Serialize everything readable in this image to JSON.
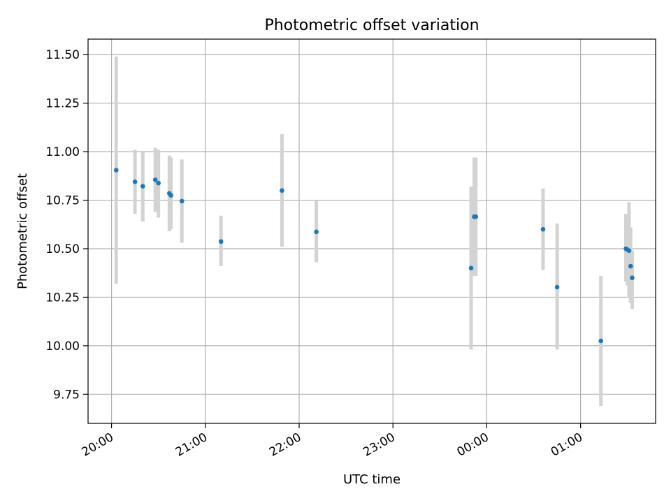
{
  "chart_data": {
    "type": "scatter",
    "title": "Photometric offset variation",
    "xlabel": "UTC time",
    "ylabel": "Photometric offset",
    "x_axis_kind": "time",
    "xlim": [
      "19:45",
      "25:48"
    ],
    "ylim": [
      9.6,
      11.58
    ],
    "xticks": [
      {
        "t": "20:00",
        "label": "20:00"
      },
      {
        "t": "21:00",
        "label": "21:00"
      },
      {
        "t": "22:00",
        "label": "22:00"
      },
      {
        "t": "23:00",
        "label": "23:00"
      },
      {
        "t": "24:00",
        "label": "00:00"
      },
      {
        "t": "25:00",
        "label": "01:00"
      }
    ],
    "yticks": [
      "9.75",
      "10.00",
      "10.25",
      "10.50",
      "10.75",
      "11.00",
      "11.25",
      "11.50"
    ],
    "grid": true,
    "colors": {
      "points": "#1f77b4",
      "errorbars": "#d3d3d3",
      "grid": "#b0b0b0"
    },
    "points": [
      {
        "t": "20:03",
        "y": 10.905,
        "yerr_low": 10.32,
        "yerr_high": 11.49
      },
      {
        "t": "20:15",
        "y": 10.845,
        "yerr_low": 10.68,
        "yerr_high": 11.01
      },
      {
        "t": "20:20",
        "y": 10.822,
        "yerr_low": 10.64,
        "yerr_high": 11.0
      },
      {
        "t": "20:28",
        "y": 10.855,
        "yerr_low": 10.69,
        "yerr_high": 11.02
      },
      {
        "t": "20:30",
        "y": 10.838,
        "yerr_low": 10.66,
        "yerr_high": 11.01
      },
      {
        "t": "20:37",
        "y": 10.785,
        "yerr_low": 10.59,
        "yerr_high": 10.98
      },
      {
        "t": "20:38",
        "y": 10.775,
        "yerr_low": 10.6,
        "yerr_high": 10.97
      },
      {
        "t": "20:45",
        "y": 10.745,
        "yerr_low": 10.53,
        "yerr_high": 10.96
      },
      {
        "t": "21:10",
        "y": 10.537,
        "yerr_low": 10.41,
        "yerr_high": 10.67
      },
      {
        "t": "21:49",
        "y": 10.8,
        "yerr_low": 10.51,
        "yerr_high": 11.09
      },
      {
        "t": "22:11",
        "y": 10.587,
        "yerr_low": 10.43,
        "yerr_high": 10.75
      },
      {
        "t": "23:50",
        "y": 10.4,
        "yerr_low": 9.98,
        "yerr_high": 10.82
      },
      {
        "t": "23:52",
        "y": 10.665,
        "yerr_low": 10.36,
        "yerr_high": 10.97
      },
      {
        "t": "23:53",
        "y": 10.665,
        "yerr_low": 10.36,
        "yerr_high": 10.97
      },
      {
        "t": "24:36",
        "y": 10.6,
        "yerr_low": 10.39,
        "yerr_high": 10.81
      },
      {
        "t": "24:45",
        "y": 10.302,
        "yerr_low": 9.98,
        "yerr_high": 10.63
      },
      {
        "t": "25:13",
        "y": 10.025,
        "yerr_low": 9.69,
        "yerr_high": 10.36
      },
      {
        "t": "25:29",
        "y": 10.5,
        "yerr_low": 10.33,
        "yerr_high": 10.68
      },
      {
        "t": "25:30",
        "y": 10.495,
        "yerr_low": 10.31,
        "yerr_high": 10.68
      },
      {
        "t": "25:31",
        "y": 10.49,
        "yerr_low": 10.25,
        "yerr_high": 10.74
      },
      {
        "t": "25:32",
        "y": 10.41,
        "yerr_low": 10.22,
        "yerr_high": 10.61
      },
      {
        "t": "25:33",
        "y": 10.35,
        "yerr_low": 10.19,
        "yerr_high": 10.49
      }
    ]
  }
}
